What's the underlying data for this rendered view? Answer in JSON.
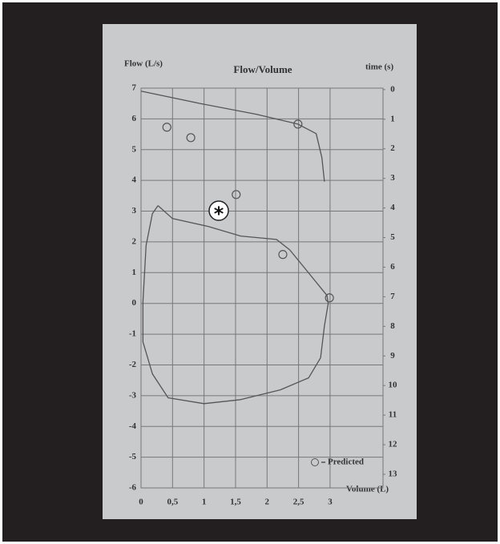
{
  "chart_data": {
    "type": "line",
    "title": "Flow/Volume",
    "y_label": "Flow (L/s)",
    "y2_label": "time (s)",
    "x_label": "Volume (L)",
    "annotation": "*",
    "xlim": [
      0,
      3.84
    ],
    "ylim": [
      -6,
      7
    ],
    "y2lim": [
      13.46,
      -0.05
    ],
    "grid": true,
    "legend": "lower right",
    "xticks": [
      0,
      {
        "value": 0.5,
        "label": "0,5"
      },
      1,
      {
        "value": 1.5,
        "label": "1,5"
      },
      2,
      {
        "value": 2.5,
        "label": "2,5"
      },
      3
    ],
    "yticks": [
      -6,
      -5,
      -4,
      -3,
      -2,
      -1,
      0,
      1,
      2,
      3,
      4,
      5,
      6,
      7
    ],
    "y2ticks": [
      0,
      1,
      2,
      3,
      4,
      5,
      6,
      7,
      8,
      9,
      10,
      11,
      12,
      13
    ],
    "series": [
      {
        "color": "#555555",
        "x": [
          0,
          0.94,
          1.83,
          2.49,
          2.78,
          2.87,
          2.91
        ],
        "values": [
          6.9,
          6.5,
          6.15,
          5.83,
          5.52,
          4.74,
          3.96
        ]
      },
      {
        "color": "#555555",
        "x": [
          0.27,
          0.5,
          1.07,
          1.58,
          2.15,
          2.36,
          2.62,
          2.95,
          2.97,
          2.91,
          2.85,
          2.66,
          2.21,
          1.58,
          1.0,
          0.43,
          0.18,
          0.03,
          0.03,
          0.08,
          0.18,
          0.27
        ],
        "values": [
          3.18,
          2.76,
          2.5,
          2.19,
          2.08,
          1.74,
          1.09,
          0.26,
          0,
          -0.73,
          -1.77,
          -2.42,
          -2.81,
          -3.13,
          -3.26,
          -3.07,
          -2.29,
          -1.25,
          0.05,
          1.88,
          2.92,
          3.18
        ]
      },
      {
        "name": "Predicted",
        "marker": "circle",
        "color": "#555555",
        "x": [
          0.41,
          0.79,
          2.49,
          1.51,
          2.25,
          2.99
        ],
        "values": [
          5.73,
          5.39,
          5.83,
          3.54,
          1.59,
          0.18
        ]
      }
    ]
  }
}
